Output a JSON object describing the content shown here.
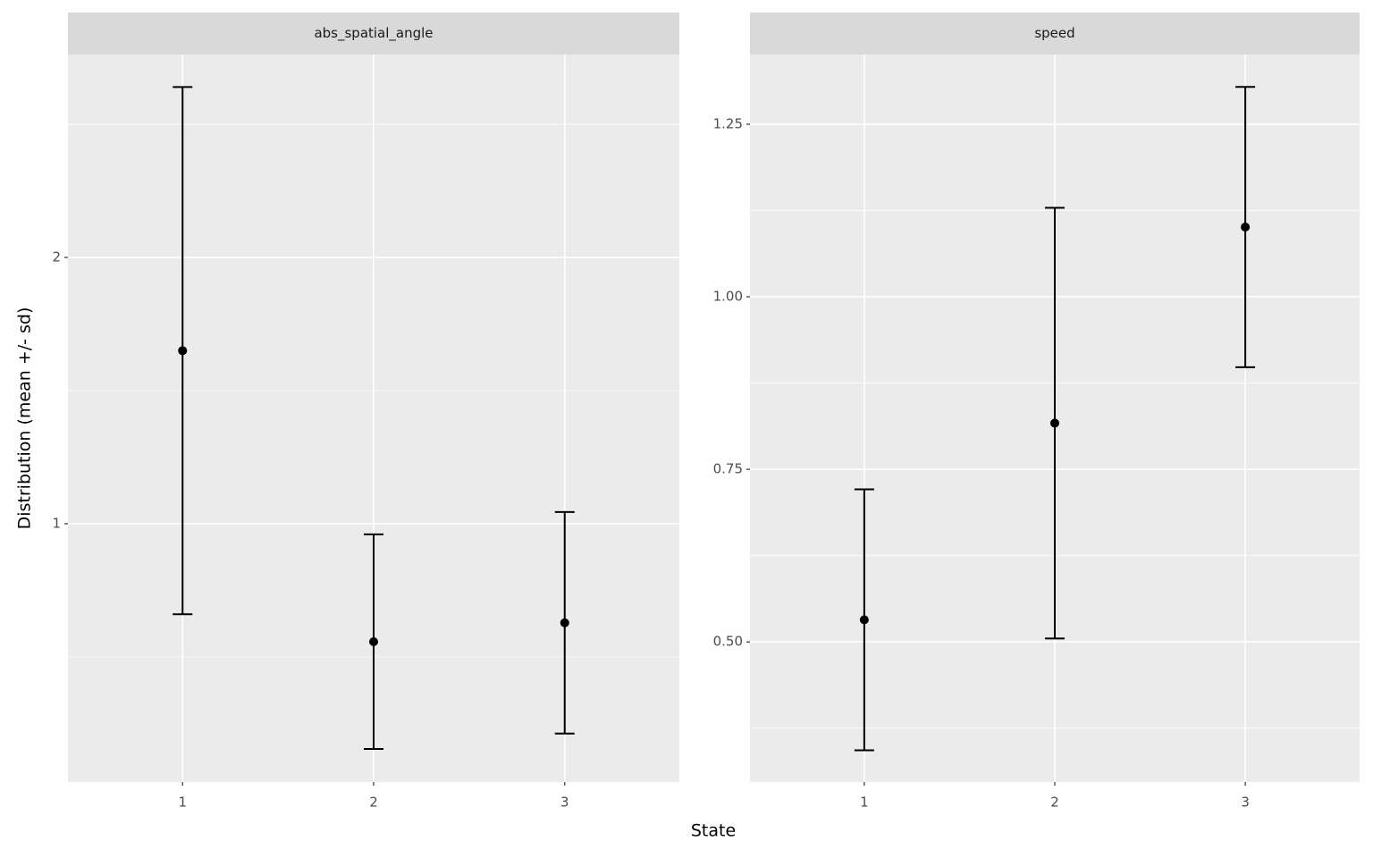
{
  "chart_data": [
    {
      "type": "errorbar",
      "title": "abs_spatial_angle",
      "categories": [
        "1",
        "2",
        "3"
      ],
      "values": [
        1.65,
        0.557,
        0.628
      ],
      "errors": [
        0.99,
        0.403,
        0.416
      ],
      "color": "#000000",
      "ylim": [
        0.03,
        2.762
      ],
      "yticks": [
        1,
        2
      ],
      "grid": true
    },
    {
      "type": "errorbar",
      "title": "speed",
      "categories": [
        "1",
        "2",
        "3"
      ],
      "values": [
        0.532,
        0.817,
        1.101
      ],
      "errors": [
        0.189,
        0.312,
        0.203
      ],
      "color": "#000000",
      "ylim": [
        0.297,
        1.351
      ],
      "yticks": [
        {
          "value": 0.5,
          "label": "0.50"
        },
        {
          "value": 0.75,
          "label": "0.75"
        },
        {
          "value": 1,
          "label": "1.00"
        },
        {
          "value": 1.25,
          "label": "1.25"
        }
      ],
      "grid": true
    }
  ],
  "x_label": "State",
  "y_label": "Distribution (mean +/- sd)"
}
